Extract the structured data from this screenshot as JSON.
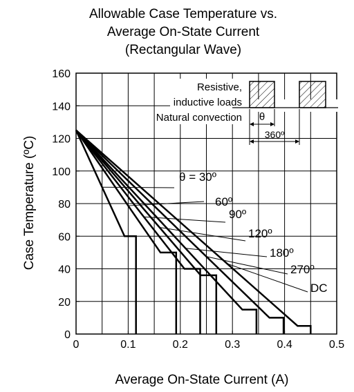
{
  "chart_data": {
    "type": "line",
    "title_lines": [
      "Allowable Case Temperature vs.",
      "Average On-State Current",
      "(Rectangular Wave)"
    ],
    "xlabel": "Average On-State Current  (A)",
    "ylabel": "Case Temperature  (ºC)",
    "xlim": [
      0,
      0.5
    ],
    "ylim": [
      0,
      160
    ],
    "x_ticks": [
      0,
      0.1,
      0.2,
      0.3,
      0.4,
      0.5
    ],
    "x_tick_labels": [
      "0",
      "0.1",
      "0.2",
      "0.3",
      "0.4",
      "0.5"
    ],
    "y_ticks": [
      0,
      20,
      40,
      60,
      80,
      100,
      120,
      140,
      160
    ],
    "y_tick_labels": [
      "0",
      "20",
      "40",
      "60",
      "80",
      "100",
      "120",
      "140",
      "160"
    ],
    "grid": true,
    "series": [
      {
        "name": "θ = 30º",
        "points": [
          [
            0,
            125
          ],
          [
            0.093,
            60
          ],
          [
            0.115,
            60
          ],
          [
            0.115,
            0
          ]
        ]
      },
      {
        "name": "60º",
        "points": [
          [
            0,
            125
          ],
          [
            0.162,
            50
          ],
          [
            0.192,
            50
          ],
          [
            0.192,
            0
          ]
        ]
      },
      {
        "name": "90º",
        "points": [
          [
            0,
            125
          ],
          [
            0.208,
            40
          ],
          [
            0.238,
            40
          ],
          [
            0.238,
            0
          ]
        ]
      },
      {
        "name": "120º",
        "points": [
          [
            0,
            125
          ],
          [
            0.239,
            36
          ],
          [
            0.269,
            36
          ],
          [
            0.269,
            0
          ]
        ]
      },
      {
        "name": "180º",
        "points": [
          [
            0,
            125
          ],
          [
            0.319,
            15
          ],
          [
            0.346,
            15
          ],
          [
            0.346,
            0
          ]
        ]
      },
      {
        "name": "270º",
        "points": [
          [
            0,
            125
          ],
          [
            0.371,
            10
          ],
          [
            0.398,
            10
          ],
          [
            0.398,
            0
          ]
        ]
      },
      {
        "name": "DC",
        "points": [
          [
            0,
            125
          ],
          [
            0.425,
            5
          ],
          [
            0.45,
            5
          ],
          [
            0.45,
            0
          ]
        ]
      }
    ],
    "inset": {
      "conditions": [
        "Resistive,",
        "inductive loads",
        "Natural convection"
      ],
      "theta_label": "θ",
      "period_label": "360º"
    }
  }
}
